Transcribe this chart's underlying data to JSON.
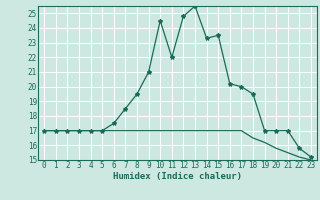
{
  "xlabel": "Humidex (Indice chaleur)",
  "bg_color": "#cde8e0",
  "line_color": "#1a6b5a",
  "grid_color": "#ffffff",
  "upper_curve": {
    "x": [
      0,
      1,
      2,
      3,
      4,
      5,
      6,
      7,
      8,
      9,
      10,
      11,
      12,
      13,
      14,
      15,
      16,
      17,
      18,
      19,
      20,
      21,
      22,
      23
    ],
    "y": [
      17,
      17,
      17,
      17,
      17,
      17,
      17.5,
      18.5,
      19.5,
      21,
      24.5,
      22,
      24.8,
      25.5,
      23.3,
      23.5,
      20.2,
      20,
      19.5,
      17,
      17,
      17,
      15.8,
      15.2
    ]
  },
  "lower_curve": {
    "x": [
      0,
      1,
      2,
      3,
      4,
      5,
      6,
      7,
      8,
      9,
      10,
      11,
      12,
      13,
      14,
      15,
      16,
      17,
      18,
      19,
      20,
      21,
      22,
      23
    ],
    "y": [
      17,
      17,
      17,
      17,
      17,
      17,
      17,
      17,
      17,
      17,
      17,
      17,
      17,
      17,
      17,
      17,
      17,
      17,
      16.5,
      16.2,
      15.8,
      15.5,
      15.2,
      15.0
    ]
  },
  "ylim": [
    15,
    25.5
  ],
  "xlim": [
    -0.5,
    23.5
  ],
  "yticks": [
    15,
    16,
    17,
    18,
    19,
    20,
    21,
    22,
    23,
    24,
    25
  ],
  "xticks": [
    0,
    1,
    2,
    3,
    4,
    5,
    6,
    7,
    8,
    9,
    10,
    11,
    12,
    13,
    14,
    15,
    16,
    17,
    18,
    19,
    20,
    21,
    22,
    23
  ],
  "label_fontsize": 6.5,
  "tick_fontsize": 5.5
}
